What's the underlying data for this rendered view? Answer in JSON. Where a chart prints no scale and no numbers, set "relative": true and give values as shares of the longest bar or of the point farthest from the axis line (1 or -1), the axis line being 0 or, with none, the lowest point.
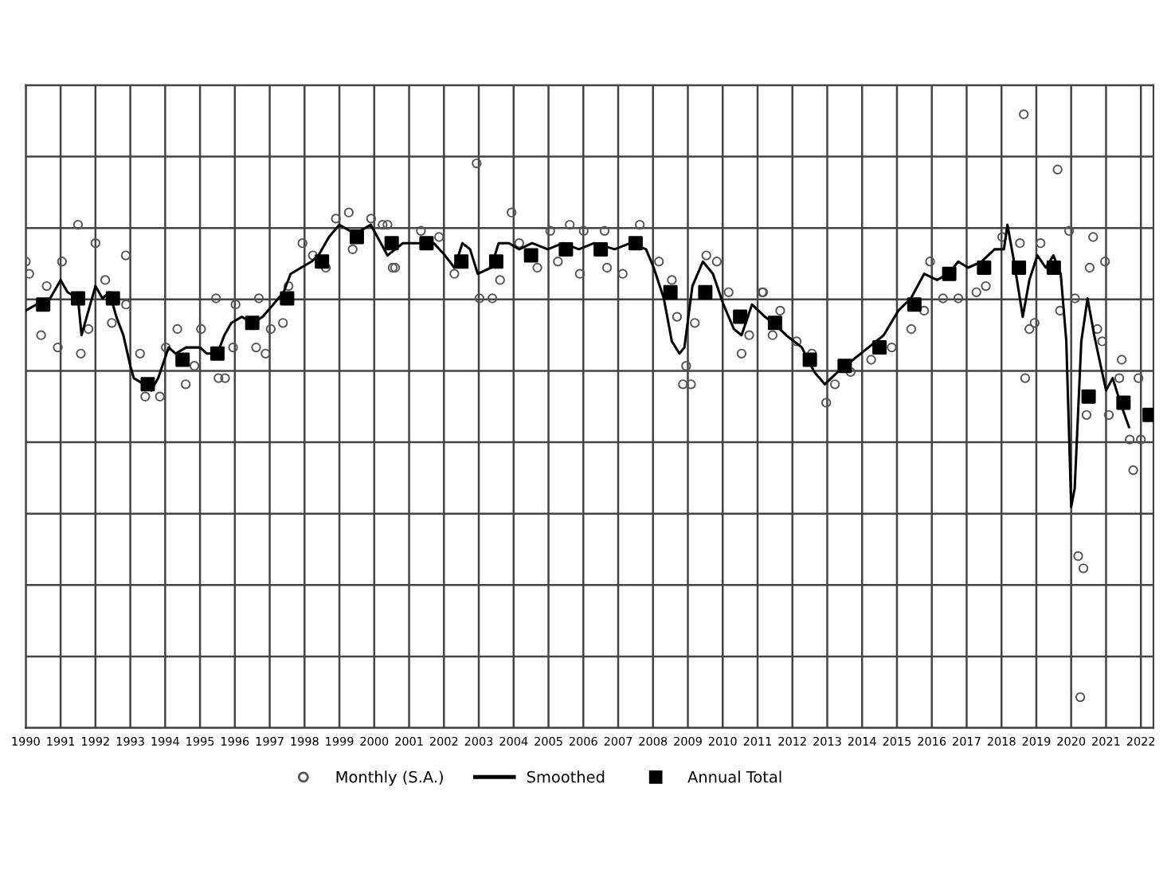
{
  "chart_data": {
    "type": "line",
    "relative": true,
    "grid": true,
    "legend": "bottom",
    "xlim": [
      1990,
      2022.36
    ],
    "xticks": [
      1990,
      1991,
      1992,
      1993,
      1994,
      1995,
      1996,
      1997,
      1998,
      1999,
      2000,
      2001,
      2002,
      2003,
      2004,
      2005,
      2006,
      2007,
      2008,
      2009,
      2010,
      2011,
      2012,
      2013,
      2014,
      2015,
      2016,
      2017,
      2018,
      2019,
      2020,
      2021,
      2022
    ],
    "tick_labels": "x",
    "series": [
      {
        "name": "Monthly (S.A.)",
        "type": "scatter",
        "marker": "circle",
        "color": "#555555",
        "x": [
          1990.0,
          1990.1,
          1990.44,
          1990.6,
          1990.92,
          1991.04,
          1991.5,
          1991.58,
          1991.8,
          1992.0,
          1992.28,
          1992.47,
          1992.87,
          1992.88,
          1993.28,
          1993.43,
          1993.85,
          1994.02,
          1994.35,
          1994.59,
          1994.84,
          1995.03,
          1995.46,
          1995.53,
          1995.72,
          1995.95,
          1996.02,
          1996.61,
          1996.69,
          1996.88,
          1997.03,
          1997.38,
          1997.54,
          1997.94,
          1998.24,
          1998.61,
          1998.9,
          1999.27,
          1999.38,
          1999.91,
          2000.24,
          2000.38,
          2000.53,
          2000.6,
          2001.34,
          2001.86,
          2002.3,
          2002.94,
          2003.02,
          2003.39,
          2003.61,
          2003.94,
          2004.16,
          2004.68,
          2005.05,
          2005.27,
          2005.61,
          2005.9,
          2006.01,
          2006.61,
          2006.68,
          2007.13,
          2007.62,
          2008.17,
          2008.54,
          2008.69,
          2008.86,
          2008.95,
          2009.09,
          2009.2,
          2009.53,
          2009.83,
          2010.17,
          2010.54,
          2010.76,
          2011.13,
          2011.16,
          2011.43,
          2011.65,
          2012.12,
          2012.56,
          2012.97,
          2013.22,
          2013.67,
          2014.26,
          2014.85,
          2015.41,
          2015.78,
          2015.95,
          2016.32,
          2016.76,
          2017.28,
          2017.55,
          2018.02,
          2018.53,
          2018.64,
          2018.68,
          2018.8,
          2018.95,
          2019.12,
          2019.61,
          2019.68,
          2019.94,
          2020.11,
          2020.2,
          2020.26,
          2020.35,
          2020.44,
          2020.53,
          2020.63,
          2020.75,
          2020.89,
          2020.97,
          2021.08,
          2021.38,
          2021.45,
          2021.68,
          2021.78,
          2021.93,
          2022.0
        ],
        "values": [
          0.76,
          0.74,
          0.64,
          0.72,
          0.62,
          0.76,
          0.82,
          0.61,
          0.65,
          0.79,
          0.73,
          0.66,
          0.77,
          0.69,
          0.61,
          0.54,
          0.54,
          0.62,
          0.65,
          0.56,
          0.59,
          0.65,
          0.7,
          0.57,
          0.57,
          0.62,
          0.69,
          0.62,
          0.7,
          0.61,
          0.65,
          0.66,
          0.72,
          0.79,
          0.77,
          0.75,
          0.83,
          0.84,
          0.78,
          0.83,
          0.82,
          0.82,
          0.75,
          0.75,
          0.81,
          0.8,
          0.74,
          0.92,
          0.7,
          0.7,
          0.73,
          0.84,
          0.79,
          0.75,
          0.81,
          0.76,
          0.82,
          0.74,
          0.81,
          0.81,
          0.75,
          0.74,
          0.82,
          0.76,
          0.73,
          0.67,
          0.56,
          0.59,
          0.56,
          0.66,
          0.77,
          0.76,
          0.71,
          0.61,
          0.64,
          0.71,
          0.71,
          0.64,
          0.68,
          0.63,
          0.61,
          0.53,
          0.56,
          0.58,
          0.6,
          0.62,
          0.65,
          0.68,
          0.76,
          0.7,
          0.7,
          0.71,
          0.72,
          0.8,
          0.79,
          1,
          0.57,
          0.65,
          0.66,
          0.79,
          0.91,
          0.68,
          0.81,
          0.7,
          0.28,
          0.05,
          0.26,
          0.51,
          0.75,
          0.8,
          0.65,
          0.63,
          0.76,
          0.51,
          0.57,
          0.6,
          0.47,
          0.42,
          0.57,
          0.47
        ]
      },
      {
        "name": "Smoothed",
        "marker": "none",
        "line_style": "solid",
        "color": "#000000",
        "x": [
          1990.0,
          1990.3,
          1990.7,
          1991.0,
          1991.2,
          1991.5,
          1991.6,
          1991.8,
          1992.0,
          1992.2,
          1992.4,
          1992.6,
          1992.8,
          1993.0,
          1993.1,
          1993.4,
          1993.6,
          1993.8,
          1994.1,
          1994.3,
          1994.6,
          1995.0,
          1995.2,
          1995.5,
          1995.7,
          1995.9,
          1996.2,
          1996.5,
          1996.8,
          1997.1,
          1997.4,
          1997.6,
          1997.9,
          1998.2,
          1998.4,
          1998.7,
          1999.0,
          1999.3,
          1999.6,
          1999.9,
          2000.38,
          2000.82,
          2001.27,
          2001.71,
          2002.03,
          2002.3,
          2002.53,
          2002.75,
          2002.97,
          2003.35,
          2003.57,
          2003.86,
          2004.16,
          2004.53,
          2004.98,
          2005.42,
          2005.87,
          2006.31,
          2006.9,
          2007.35,
          2007.8,
          2008.02,
          2008.31,
          2008.54,
          2008.76,
          2008.9,
          2009.13,
          2009.43,
          2009.72,
          2010.02,
          2010.32,
          2010.54,
          2010.84,
          2011.21,
          2011.45,
          2011.82,
          2012.27,
          2012.63,
          2012.93,
          2013.3,
          2013.74,
          2014.18,
          2014.62,
          2015.04,
          2015.4,
          2015.78,
          2016.15,
          2016.47,
          2016.76,
          2017.04,
          2017.43,
          2017.8,
          2018.07,
          2018.17,
          2018.36,
          2018.61,
          2018.8,
          2019.03,
          2019.27,
          2019.49,
          2019.7,
          2019.86,
          2020.0,
          2020.1,
          2020.29,
          2020.47,
          2020.66,
          2020.81,
          2021.0,
          2021.19,
          2021.41,
          2021.66
        ],
        "values": [
          0.68,
          0.69,
          0.7,
          0.73,
          0.71,
          0.7,
          0.64,
          0.68,
          0.72,
          0.7,
          0.71,
          0.67,
          0.64,
          0.59,
          0.57,
          0.56,
          0.55,
          0.57,
          0.62,
          0.61,
          0.62,
          0.62,
          0.61,
          0.61,
          0.64,
          0.66,
          0.67,
          0.66,
          0.67,
          0.69,
          0.71,
          0.74,
          0.75,
          0.76,
          0.77,
          0.8,
          0.82,
          0.81,
          0.81,
          0.82,
          0.77,
          0.79,
          0.79,
          0.79,
          0.77,
          0.75,
          0.79,
          0.78,
          0.74,
          0.75,
          0.79,
          0.79,
          0.78,
          0.79,
          0.78,
          0.79,
          0.78,
          0.79,
          0.78,
          0.79,
          0.78,
          0.75,
          0.7,
          0.63,
          0.61,
          0.62,
          0.72,
          0.76,
          0.74,
          0.69,
          0.65,
          0.64,
          0.69,
          0.67,
          0.66,
          0.64,
          0.62,
          0.58,
          0.56,
          0.58,
          0.6,
          0.62,
          0.64,
          0.68,
          0.7,
          0.74,
          0.73,
          0.74,
          0.76,
          0.75,
          0.76,
          0.78,
          0.78,
          0.82,
          0.76,
          0.67,
          0.73,
          0.77,
          0.75,
          0.77,
          0.74,
          0.63,
          0.36,
          0.39,
          0.63,
          0.7,
          0.64,
          0.6,
          0.55,
          0.57,
          0.53,
          0.49
        ]
      },
      {
        "name": "Annual Total",
        "type": "scatter",
        "marker": "square",
        "color": "#000000",
        "x": [
          1990.5,
          1991.5,
          1992.5,
          1993.5,
          1994.5,
          1995.5,
          1996.5,
          1997.5,
          1998.5,
          1999.5,
          2000.5,
          2001.5,
          2002.5,
          2003.5,
          2004.5,
          2005.5,
          2006.5,
          2007.5,
          2008.5,
          2009.5,
          2010.5,
          2011.5,
          2012.5,
          2013.5,
          2014.5,
          2015.5,
          2016.5,
          2017.5,
          2018.5,
          2019.5,
          2020.5,
          2021.5,
          2022.25
        ],
        "values": [
          0.69,
          0.7,
          0.7,
          0.56,
          0.6,
          0.61,
          0.66,
          0.7,
          0.76,
          0.8,
          0.79,
          0.79,
          0.76,
          0.76,
          0.77,
          0.78,
          0.78,
          0.79,
          0.71,
          0.71,
          0.67,
          0.66,
          0.6,
          0.59,
          0.62,
          0.69,
          0.74,
          0.75,
          0.75,
          0.75,
          0.54,
          0.53,
          0.51
        ]
      }
    ]
  }
}
